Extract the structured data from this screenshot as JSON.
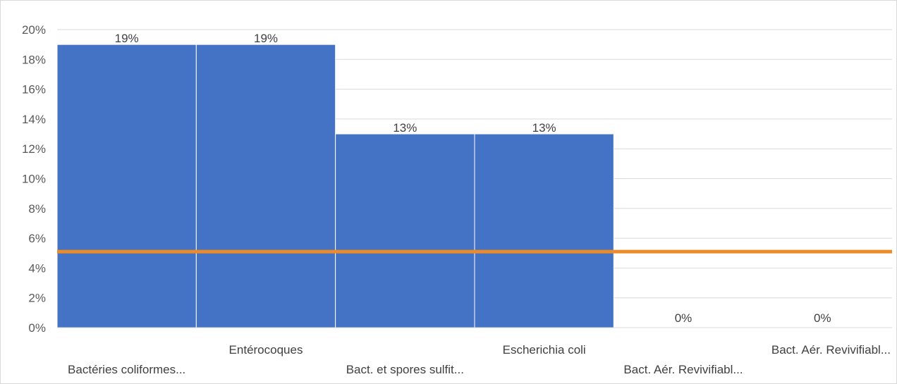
{
  "chart_data": {
    "type": "bar",
    "categories": [
      "Bactéries coliformes...",
      "Entérocoques",
      "Bact. et spores sulfit...",
      "Escherichia coli",
      "Bact. Aér. Revivifiabl...",
      "Bact. Aér. Revivifiabl..."
    ],
    "series": [
      {
        "type": "bar",
        "values": [
          0.19,
          0.19,
          0.13,
          0.13,
          0,
          0
        ],
        "data_labels": [
          "19%",
          "19%",
          "13%",
          "13%",
          "0%",
          "0%"
        ],
        "color": "#4472c4"
      },
      {
        "type": "line",
        "values": [
          0.051,
          0.051,
          0.051,
          0.051,
          0.051,
          0.051
        ],
        "color": "#ed8b2a"
      }
    ],
    "ylim": [
      0,
      0.2
    ],
    "yticks": [
      0,
      0.02,
      0.04,
      0.06,
      0.08,
      0.1,
      0.12,
      0.14,
      0.16,
      0.18,
      0.2
    ],
    "ytick_labels": [
      "0%",
      "2%",
      "4%",
      "6%",
      "8%",
      "10%",
      "12%",
      "14%",
      "16%",
      "18%",
      "20%"
    ],
    "grid": true,
    "legend": "none"
  }
}
